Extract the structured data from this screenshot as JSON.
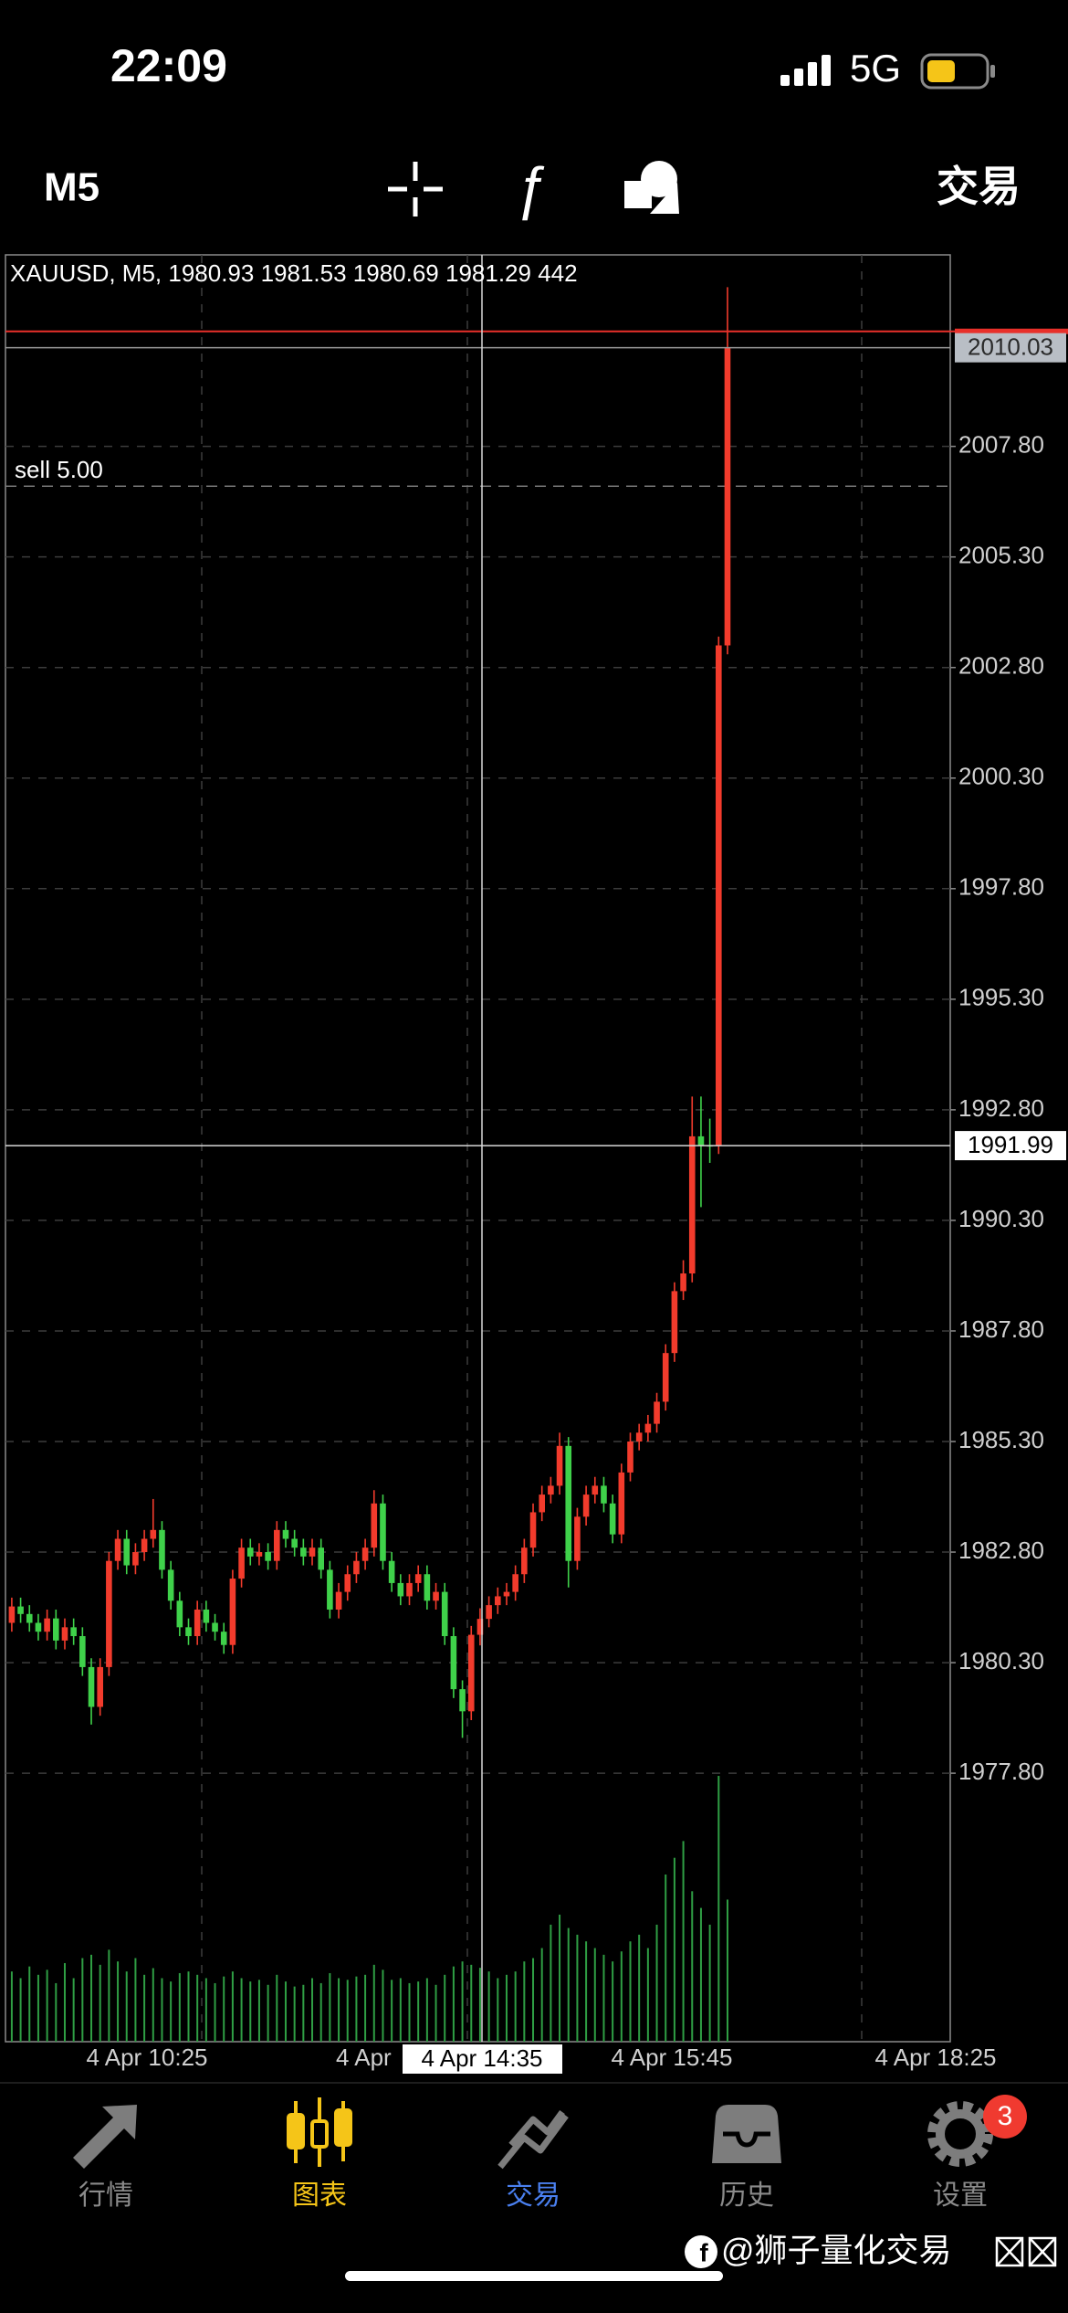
{
  "status_bar": {
    "time": "22:09",
    "network": "5G"
  },
  "toolbar": {
    "timeframe": "M5",
    "trade": "交易"
  },
  "chart_data": {
    "type": "candlestick",
    "title": "XAUUSD, M5, 1980.93 1981.53 1980.69 1981.29 442",
    "open": [
      1981.2,
      1981.57,
      1981.4,
      1981.2,
      1981.0,
      1981.3,
      1980.8,
      1981.1,
      1980.9,
      1980.2,
      1979.3,
      1980.2,
      1982.6,
      1983.1,
      1982.5,
      1982.8,
      1983.1,
      1983.3,
      1982.4,
      1981.7,
      1981.1,
      1980.9,
      1981.5,
      1981.2,
      1981.0,
      1980.7,
      1982.2,
      1982.9,
      1982.7,
      1982.8,
      1982.6,
      1983.3,
      1983.1,
      1982.9,
      1982.7,
      1982.9,
      1982.4,
      1981.5,
      1981.9,
      1982.3,
      1982.6,
      1982.9,
      1983.9,
      1982.6,
      1982.1,
      1981.8,
      1982.1,
      1982.3,
      1981.7,
      1981.9,
      1980.9,
      1979.7,
      1979.2,
      1980.93,
      1981.29,
      1981.6,
      1981.8,
      1981.9,
      1982.3,
      1982.9,
      1983.7,
      1984.1,
      1984.3,
      1985.2,
      1982.6,
      1983.6,
      1984.1,
      1984.3,
      1983.9,
      1983.2,
      1984.6,
      1985.3,
      1985.5,
      1985.7,
      1986.2,
      1987.3,
      1988.7,
      1989.1,
      1992.2,
      1992.0,
      1991.99,
      2003.3
    ],
    "high": [
      1981.77,
      1981.77,
      1981.6,
      1981.4,
      1981.5,
      1981.5,
      1981.3,
      1981.3,
      1981.1,
      1980.4,
      1980.4,
      1982.8,
      1983.3,
      1983.3,
      1983.0,
      1983.3,
      1984.0,
      1983.5,
      1982.6,
      1981.9,
      1981.3,
      1981.7,
      1981.7,
      1981.4,
      1981.2,
      1982.4,
      1983.1,
      1983.1,
      1983.0,
      1983.0,
      1983.5,
      1983.5,
      1983.3,
      1983.1,
      1983.1,
      1983.1,
      1982.6,
      1982.1,
      1982.5,
      1982.8,
      1983.1,
      1984.2,
      1984.1,
      1982.8,
      1982.3,
      1982.3,
      1982.5,
      1982.5,
      1982.1,
      1982.1,
      1981.1,
      1979.9,
      1981.13,
      1981.53,
      1981.8,
      1982.0,
      1982.1,
      1982.5,
      1983.1,
      1983.9,
      1984.3,
      1984.5,
      1985.5,
      1985.4,
      1983.8,
      1984.3,
      1984.5,
      1984.5,
      1984.1,
      1984.8,
      1985.5,
      1985.7,
      1985.9,
      1986.4,
      1987.5,
      1988.9,
      1989.4,
      1993.1,
      1993.1,
      1992.6,
      2003.5,
      2011.4
    ],
    "low": [
      1981.0,
      1981.2,
      1981.0,
      1980.8,
      1980.8,
      1980.6,
      1980.6,
      1980.7,
      1980.0,
      1978.9,
      1979.1,
      1980.0,
      1982.4,
      1982.3,
      1982.3,
      1982.6,
      1982.9,
      1982.2,
      1981.5,
      1980.9,
      1980.7,
      1980.7,
      1981.0,
      1980.8,
      1980.5,
      1980.5,
      1982.0,
      1982.5,
      1982.5,
      1982.4,
      1982.4,
      1982.9,
      1982.7,
      1982.5,
      1982.5,
      1982.2,
      1981.3,
      1981.3,
      1981.7,
      1982.1,
      1982.4,
      1982.7,
      1982.4,
      1981.9,
      1981.6,
      1981.6,
      1981.9,
      1981.5,
      1981.5,
      1980.7,
      1979.5,
      1978.6,
      1979.0,
      1980.69,
      1981.1,
      1981.4,
      1981.6,
      1981.7,
      1982.1,
      1982.7,
      1983.5,
      1983.9,
      1984.1,
      1982.0,
      1982.4,
      1983.4,
      1983.9,
      1983.7,
      1983.0,
      1983.0,
      1984.4,
      1985.1,
      1985.3,
      1985.5,
      1986.0,
      1987.1,
      1988.5,
      1988.9,
      1990.6,
      1991.6,
      1991.8,
      2003.1
    ],
    "close": [
      1981.57,
      1981.4,
      1981.2,
      1981.0,
      1981.3,
      1980.8,
      1981.1,
      1980.9,
      1980.2,
      1979.3,
      1980.2,
      1982.6,
      1983.1,
      1982.5,
      1982.8,
      1983.1,
      1983.3,
      1982.4,
      1981.7,
      1981.1,
      1980.9,
      1981.5,
      1981.2,
      1981.0,
      1980.7,
      1982.2,
      1982.9,
      1982.7,
      1982.8,
      1982.6,
      1983.3,
      1983.1,
      1982.9,
      1982.7,
      1982.9,
      1982.4,
      1981.5,
      1981.9,
      1982.3,
      1982.6,
      1982.9,
      1983.9,
      1982.6,
      1982.1,
      1981.8,
      1982.1,
      1982.3,
      1981.7,
      1981.9,
      1980.9,
      1979.7,
      1979.2,
      1980.93,
      1981.29,
      1981.6,
      1981.8,
      1981.9,
      1982.3,
      1982.9,
      1983.7,
      1984.1,
      1984.3,
      1985.2,
      1982.6,
      1983.6,
      1984.1,
      1984.3,
      1983.9,
      1983.2,
      1984.6,
      1985.3,
      1985.5,
      1985.7,
      1986.2,
      1987.3,
      1988.7,
      1989.1,
      1992.2,
      1992.0,
      1991.99,
      2003.3,
      2010.03
    ],
    "volume": [
      420,
      380,
      450,
      400,
      430,
      350,
      470,
      380,
      500,
      520,
      460,
      550,
      480,
      420,
      500,
      400,
      440,
      380,
      360,
      410,
      420,
      400,
      380,
      350,
      390,
      420,
      380,
      360,
      370,
      340,
      400,
      360,
      330,
      340,
      380,
      350,
      410,
      380,
      370,
      390,
      400,
      460,
      430,
      370,
      380,
      350,
      360,
      380,
      340,
      400,
      450,
      480,
      460,
      442,
      420,
      380,
      400,
      420,
      480,
      500,
      560,
      700,
      760,
      680,
      640,
      600,
      560,
      520,
      480,
      540,
      600,
      640,
      560,
      700,
      1000,
      1100,
      1200,
      900,
      800,
      700,
      1590,
      850
    ],
    "up_color": "#f23b2c",
    "down_color": "#3fd14a",
    "volume_color": "#2f9e44",
    "ylim": [
      1971.73,
      2012.13
    ],
    "yticks": [
      {
        "value": 2007.8,
        "label": "2007.80"
      },
      {
        "value": 2005.3,
        "label": "2005.30"
      },
      {
        "value": 2002.8,
        "label": "2002.80"
      },
      {
        "value": 2000.3,
        "label": "2000.30"
      },
      {
        "value": 1997.8,
        "label": "1997.80"
      },
      {
        "value": 1995.3,
        "label": "1995.30"
      },
      {
        "value": 1992.8,
        "label": "1992.80"
      },
      {
        "value": 1990.3,
        "label": "1990.30"
      },
      {
        "value": 1987.8,
        "label": "1987.80"
      },
      {
        "value": 1985.3,
        "label": "1985.30"
      },
      {
        "value": 1982.8,
        "label": "1982.80"
      },
      {
        "value": 1980.3,
        "label": "1980.30"
      },
      {
        "value": 1977.8,
        "label": "1977.80"
      }
    ],
    "grid": true,
    "bid": 2010.03,
    "ask": 2010.4,
    "order": {
      "label": "sell 5.00",
      "price": 2006.9
    },
    "crosshair": {
      "price": 1991.99,
      "time": "4 Apr 14:35"
    },
    "x_labels": [
      "4 Apr 10:25",
      "4 Apr",
      "4 Apr 15:45",
      "4 Apr 18:25"
    ]
  },
  "tab_bar": {
    "tabs": [
      {
        "label": "行情"
      },
      {
        "label": "图表"
      },
      {
        "label": "交易"
      },
      {
        "label": "历史"
      },
      {
        "label": "设置"
      }
    ],
    "badge": 3
  },
  "watermark": "@狮子量化交易"
}
